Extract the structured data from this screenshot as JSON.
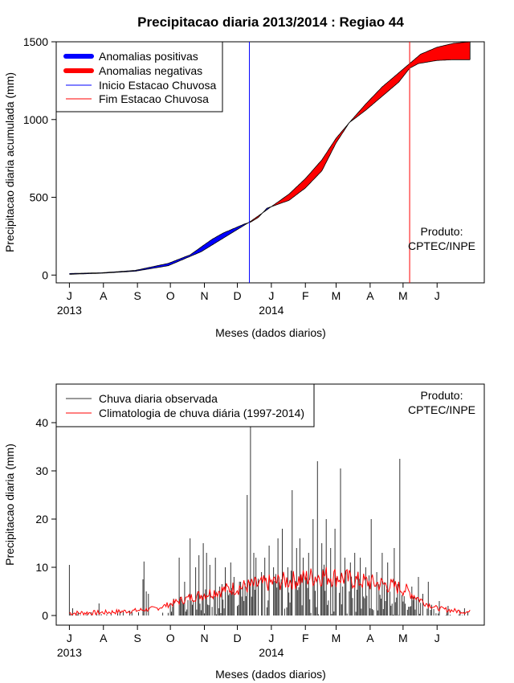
{
  "chart_data": [
    {
      "type": "area",
      "title": "Precipitacao diaria 2013/2014 : Regiao 44",
      "ylabel": "Precipitacao diaria acumulada (mm)",
      "xlabel": "Meses (dados diarios)",
      "ylim": [
        -50,
        1500
      ],
      "yticks": [
        0,
        500,
        1000,
        1500
      ],
      "xticks": [
        {
          "label": "J",
          "day": 0
        },
        {
          "label": "A",
          "day": 31
        },
        {
          "label": "S",
          "day": 62
        },
        {
          "label": "O",
          "day": 92
        },
        {
          "label": "N",
          "day": 123
        },
        {
          "label": "D",
          "day": 153
        },
        {
          "label": "J",
          "day": 184
        },
        {
          "label": "F",
          "day": 215
        },
        {
          "label": "M",
          "day": 243
        },
        {
          "label": "A",
          "day": 274
        },
        {
          "label": "M",
          "day": 304
        },
        {
          "label": "J",
          "day": 335
        }
      ],
      "year_labels": [
        {
          "label": "2013",
          "day": 0
        },
        {
          "label": "2014",
          "day": 184
        }
      ],
      "xlim": [
        -12,
        378
      ],
      "legend": {
        "placement": "top-left",
        "items": [
          {
            "label": "Anomalias positivas",
            "color": "#0000ff",
            "style": "thick"
          },
          {
            "label": "Anomalias negativas",
            "color": "#ff0000",
            "style": "thick"
          },
          {
            "label": "Inicio Estacao Chuvosa",
            "color": "#0000ff",
            "style": "thin"
          },
          {
            "label": "Fim Estacao Chuvosa",
            "color": "#ff0000",
            "style": "thin"
          }
        ]
      },
      "annotation": [
        "Produto:",
        "CPTEC/INPE"
      ],
      "season_start_day": 164,
      "season_end_day": 310,
      "end_day": 365,
      "climatology_cumulative": [
        [
          0,
          5
        ],
        [
          30,
          12
        ],
        [
          60,
          25
        ],
        [
          90,
          60
        ],
        [
          120,
          150
        ],
        [
          150,
          280
        ],
        [
          165,
          345
        ],
        [
          180,
          420
        ],
        [
          200,
          520
        ],
        [
          215,
          620
        ],
        [
          230,
          740
        ],
        [
          243,
          880
        ],
        [
          255,
          980
        ],
        [
          270,
          1100
        ],
        [
          285,
          1210
        ],
        [
          300,
          1300
        ],
        [
          310,
          1360
        ],
        [
          320,
          1420
        ],
        [
          335,
          1465
        ],
        [
          350,
          1490
        ],
        [
          365,
          1500
        ]
      ],
      "observed_cumulative": [
        [
          0,
          10
        ],
        [
          30,
          15
        ],
        [
          60,
          30
        ],
        [
          90,
          75
        ],
        [
          110,
          130
        ],
        [
          120,
          180
        ],
        [
          130,
          230
        ],
        [
          140,
          270
        ],
        [
          150,
          300
        ],
        [
          160,
          330
        ],
        [
          165,
          340
        ],
        [
          172,
          370
        ],
        [
          180,
          430
        ],
        [
          200,
          480
        ],
        [
          215,
          560
        ],
        [
          230,
          670
        ],
        [
          243,
          850
        ],
        [
          255,
          980
        ],
        [
          270,
          1060
        ],
        [
          285,
          1150
        ],
        [
          300,
          1240
        ],
        [
          310,
          1330
        ],
        [
          318,
          1360
        ],
        [
          335,
          1380
        ],
        [
          350,
          1385
        ],
        [
          365,
          1385
        ]
      ],
      "colors": {
        "positive": "#0000ff",
        "negative": "#ff0000"
      }
    },
    {
      "type": "line",
      "ylabel": "Precipitacao diaria (mm)",
      "xlabel": "Meses (dados diarios)",
      "ylim": [
        -2,
        48
      ],
      "yticks": [
        0,
        10,
        20,
        30,
        40
      ],
      "xticks": [
        {
          "label": "J",
          "day": 0
        },
        {
          "label": "A",
          "day": 31
        },
        {
          "label": "S",
          "day": 62
        },
        {
          "label": "O",
          "day": 92
        },
        {
          "label": "N",
          "day": 123
        },
        {
          "label": "D",
          "day": 153
        },
        {
          "label": "J",
          "day": 184
        },
        {
          "label": "F",
          "day": 215
        },
        {
          "label": "M",
          "day": 243
        },
        {
          "label": "A",
          "day": 274
        },
        {
          "label": "M",
          "day": 304
        },
        {
          "label": "J",
          "day": 335
        }
      ],
      "year_labels": [
        {
          "label": "2013",
          "day": 0
        },
        {
          "label": "2014",
          "day": 184
        }
      ],
      "xlim": [
        -12,
        378
      ],
      "legend": {
        "placement": "top-left",
        "items": [
          {
            "label": "Chuva diaria observada",
            "color": "#333333"
          },
          {
            "label": "Climatologia de chuva diária (1997-2014)",
            "color": "#ff0000"
          }
        ]
      },
      "annotation": [
        "Produto:",
        "CPTEC/INPE"
      ],
      "n_days": 366,
      "observed_peaks": [
        [
          0,
          10.5
        ],
        [
          3,
          1.5
        ],
        [
          27,
          2.5
        ],
        [
          67,
          7.5
        ],
        [
          68,
          11.2
        ],
        [
          70,
          5
        ],
        [
          72,
          4.5
        ],
        [
          95,
          3.5
        ],
        [
          100,
          12
        ],
        [
          105,
          7
        ],
        [
          110,
          16
        ],
        [
          115,
          10
        ],
        [
          118,
          12.5
        ],
        [
          122,
          15
        ],
        [
          125,
          13
        ],
        [
          128,
          10.5
        ],
        [
          133,
          12
        ],
        [
          137,
          6
        ],
        [
          142,
          10
        ],
        [
          147,
          11
        ],
        [
          150,
          8
        ],
        [
          156,
          7
        ],
        [
          162,
          25
        ],
        [
          165,
          45
        ],
        [
          168,
          13
        ],
        [
          170,
          12
        ],
        [
          175,
          9
        ],
        [
          178,
          12
        ],
        [
          182,
          14.5
        ],
        [
          186,
          10
        ],
        [
          190,
          16
        ],
        [
          194,
          18
        ],
        [
          199,
          10
        ],
        [
          203,
          26
        ],
        [
          207,
          14
        ],
        [
          210,
          16
        ],
        [
          213,
          12
        ],
        [
          218,
          13
        ],
        [
          222,
          20
        ],
        [
          226,
          32
        ],
        [
          230,
          15
        ],
        [
          234,
          20
        ],
        [
          238,
          14
        ],
        [
          242,
          18
        ],
        [
          247,
          30.5
        ],
        [
          251,
          12
        ],
        [
          256,
          11
        ],
        [
          260,
          13
        ],
        [
          265,
          12
        ],
        [
          270,
          10
        ],
        [
          275,
          20
        ],
        [
          280,
          9
        ],
        [
          285,
          13
        ],
        [
          290,
          11
        ],
        [
          296,
          14
        ],
        [
          301,
          32.5
        ],
        [
          305,
          4
        ],
        [
          312,
          6
        ],
        [
          318,
          8
        ],
        [
          322,
          4.5
        ],
        [
          327,
          7
        ],
        [
          337,
          3
        ],
        [
          345,
          2
        ],
        [
          356,
          1
        ],
        [
          360,
          1.5
        ]
      ],
      "climatology_curve": [
        [
          0,
          0.5
        ],
        [
          30,
          0.6
        ],
        [
          60,
          1
        ],
        [
          80,
          1.5
        ],
        [
          100,
          3
        ],
        [
          115,
          4
        ],
        [
          130,
          4.8
        ],
        [
          145,
          5.5
        ],
        [
          160,
          6
        ],
        [
          175,
          6.5
        ],
        [
          190,
          7
        ],
        [
          210,
          7.5
        ],
        [
          220,
          8
        ],
        [
          230,
          8.3
        ],
        [
          245,
          8
        ],
        [
          260,
          7.3
        ],
        [
          275,
          6.8
        ],
        [
          290,
          6.3
        ],
        [
          305,
          5.5
        ],
        [
          315,
          4
        ],
        [
          325,
          2.5
        ],
        [
          335,
          1.5
        ],
        [
          350,
          1
        ],
        [
          365,
          0.7
        ]
      ],
      "colors": {
        "observed": "#333333",
        "climatology": "#ff0000"
      }
    }
  ]
}
